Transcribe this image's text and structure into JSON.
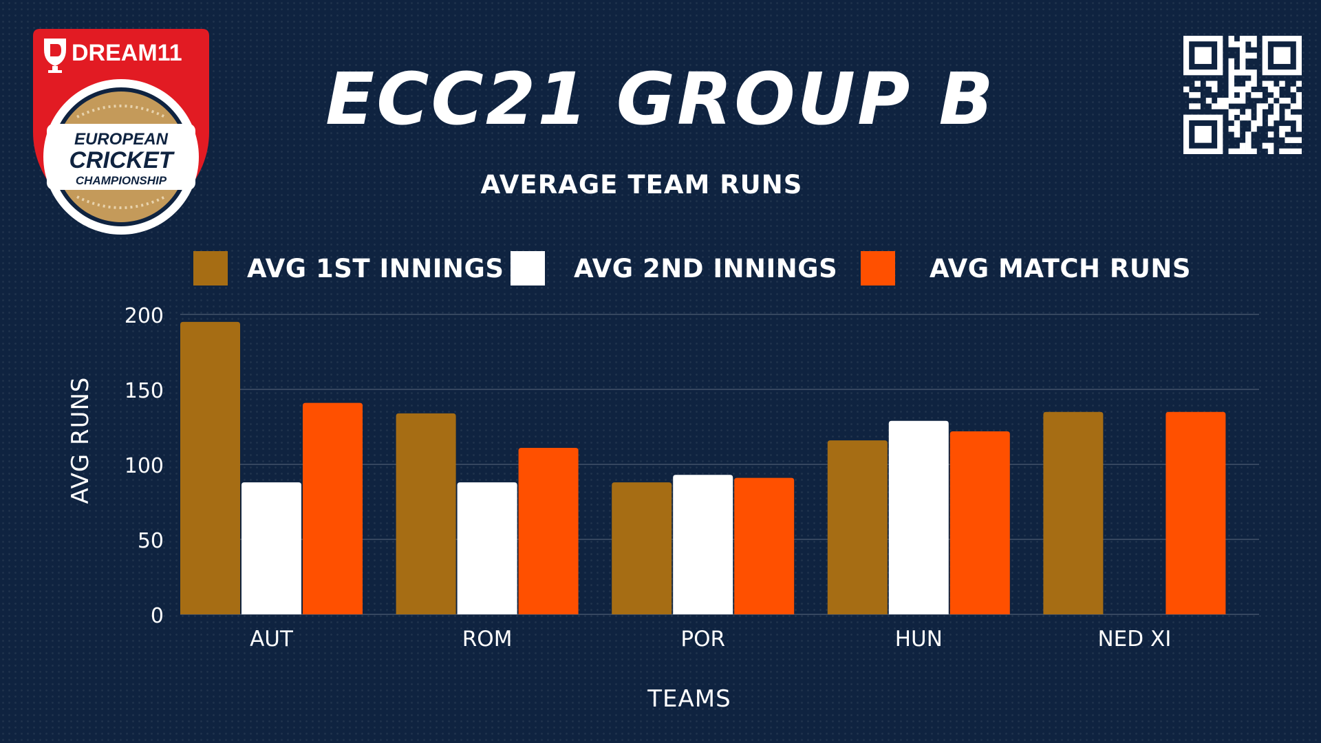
{
  "header": {
    "title": "ECC21 GROUP B",
    "subtitle": "AVERAGE TEAM RUNS"
  },
  "logo": {
    "brand": "DREAM11",
    "line1": "EUROPEAN",
    "line2": "CRICKET",
    "line3": "CHAMPIONSHIP",
    "icon": "dream11-shield-logo"
  },
  "qr_code": {
    "icon": "qr-code-icon"
  },
  "colors": {
    "background": "#0f2340",
    "first_innings": "#a66d14",
    "second_innings": "#ffffff",
    "match_runs": "#ff5000",
    "brand_red": "#e21b23",
    "ball_gold": "#c49a5a"
  },
  "chart_data": {
    "type": "bar",
    "title": "AVERAGE TEAM RUNS",
    "xlabel": "TEAMS",
    "ylabel": "AVG RUNS",
    "categories": [
      "AUT",
      "ROM",
      "POR",
      "HUN",
      "NED XI"
    ],
    "series": [
      {
        "name": "AVG 1ST INNINGS",
        "color": "#a66d14",
        "values": [
          195,
          134,
          88,
          116,
          135
        ]
      },
      {
        "name": "AVG 2ND INNINGS",
        "color": "#ffffff",
        "values": [
          88,
          88,
          93,
          129,
          0
        ]
      },
      {
        "name": "AVG MATCH RUNS",
        "color": "#ff5000",
        "values": [
          141,
          111,
          91,
          122,
          135
        ]
      }
    ],
    "ylim": [
      0,
      200
    ],
    "yticks": [
      "0",
      "50",
      "100",
      "150",
      "200"
    ],
    "grid": true,
    "legend_position": "top"
  }
}
